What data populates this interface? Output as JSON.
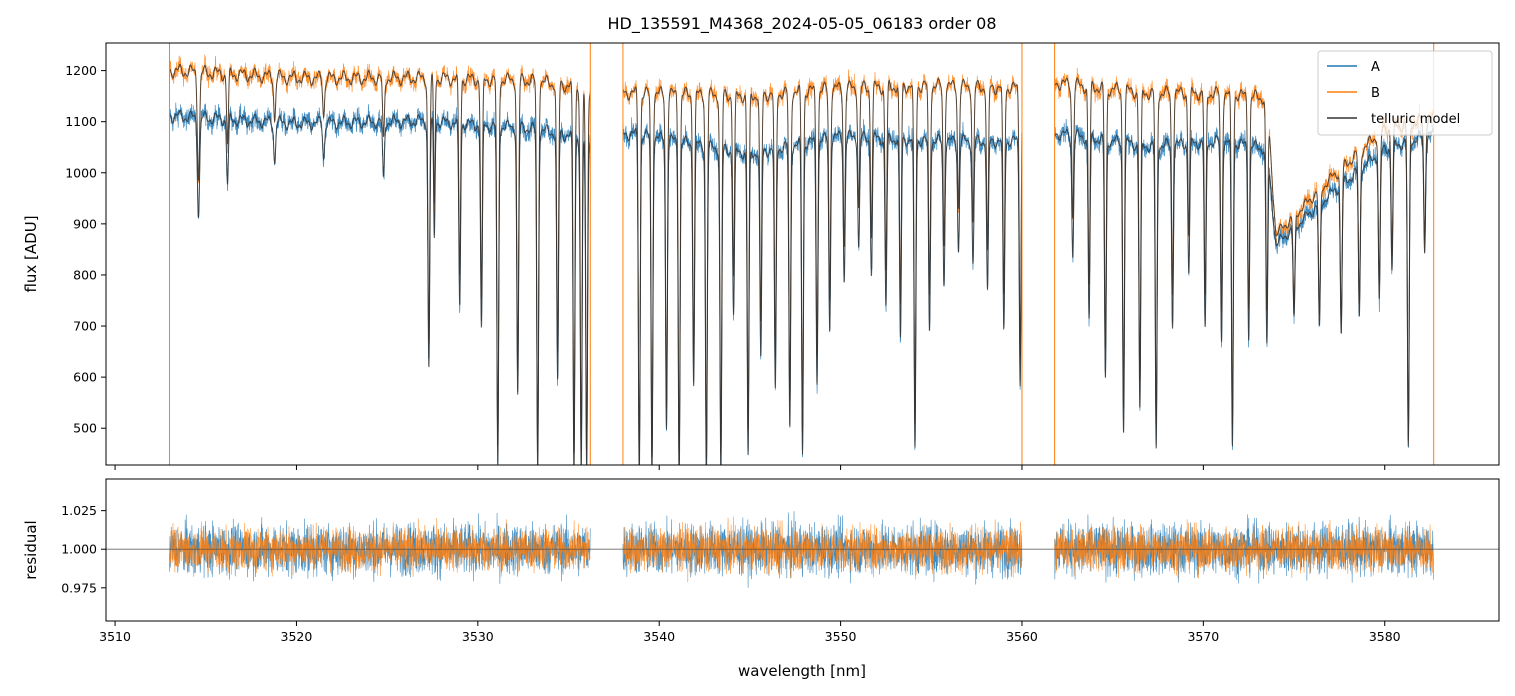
{
  "chart_data": {
    "title": "HD_135591_M4368_2024-05-05_06183  order 08",
    "xlabel": "wavelength [nm]",
    "xlim": [
      3509.5,
      3586.3
    ],
    "x_ticks": [
      3510,
      3520,
      3530,
      3540,
      3550,
      3560,
      3570,
      3580
    ],
    "x_tick_labels": [
      "3510",
      "3520",
      "3530",
      "3540",
      "3550",
      "3560",
      "3570",
      "3580"
    ],
    "x_coverage_segments": [
      [
        3513.0,
        3536.2
      ],
      [
        3538.0,
        3560.0
      ],
      [
        3561.8,
        3582.7
      ]
    ],
    "panels": [
      {
        "type": "line",
        "ylabel": "flux [ADU]",
        "ylim": [
          428,
          1254
        ],
        "y_ticks": [
          500,
          600,
          700,
          800,
          900,
          1000,
          1100,
          1200
        ],
        "y_tick_labels": [
          "500",
          "600",
          "700",
          "800",
          "900",
          "1000",
          "1100",
          "1200"
        ],
        "legend": {
          "position": "top-right",
          "entries": [
            {
              "label": "A",
              "color": "#1f77b4"
            },
            {
              "label": "B",
              "color": "#ff7f0e"
            },
            {
              "label": "telluric model",
              "color": "#333333"
            }
          ]
        },
        "series": [
          {
            "name": "A",
            "color": "#1f77b4",
            "continuum": [
              [
                3513.0,
                1125
              ],
              [
                3520.0,
                1110
              ],
              [
                3527.0,
                1115
              ],
              [
                3533.0,
                1100
              ],
              [
                3536.0,
                1080
              ],
              [
                3538.5,
                1090
              ],
              [
                3545.0,
                1050
              ],
              [
                3550.0,
                1085
              ],
              [
                3555.0,
                1075
              ],
              [
                3560.0,
                1075
              ],
              [
                3562.0,
                1090
              ],
              [
                3567.0,
                1065
              ],
              [
                3571.0,
                1075
              ],
              [
                3573.5,
                1060
              ],
              [
                3574.0,
                870
              ],
              [
                3577.0,
                970
              ],
              [
                3580.0,
                1060
              ],
              [
                3582.7,
                1090
              ]
            ]
          },
          {
            "name": "B",
            "color": "#ff7f0e",
            "continuum": [
              [
                3513.0,
                1215
              ],
              [
                3520.0,
                1200
              ],
              [
                3527.0,
                1200
              ],
              [
                3533.0,
                1195
              ],
              [
                3536.0,
                1180
              ],
              [
                3538.5,
                1170
              ],
              [
                3545.0,
                1165
              ],
              [
                3550.0,
                1180
              ],
              [
                3555.0,
                1185
              ],
              [
                3560.0,
                1180
              ],
              [
                3562.0,
                1190
              ],
              [
                3567.0,
                1170
              ],
              [
                3571.0,
                1170
              ],
              [
                3573.5,
                1160
              ],
              [
                3574.0,
                890
              ],
              [
                3577.0,
                1000
              ],
              [
                3580.0,
                1100
              ],
              [
                3582.7,
                1120
              ]
            ]
          }
        ],
        "telluric_model": {
          "name": "telluric model",
          "color": "#333333",
          "absorption_lines": [
            [
              3514.6,
              190,
              0.06
            ],
            [
              3516.2,
              130,
              0.05
            ],
            [
              3518.8,
              80,
              0.05
            ],
            [
              3521.5,
              70,
              0.05
            ],
            [
              3524.8,
              120,
              0.05
            ],
            [
              3527.3,
              500,
              0.05
            ],
            [
              3527.6,
              240,
              0.04
            ],
            [
              3529.0,
              370,
              0.05
            ],
            [
              3530.2,
              420,
              0.05
            ],
            [
              3531.1,
              700,
              0.05
            ],
            [
              3532.2,
              550,
              0.05
            ],
            [
              3533.3,
              700,
              0.05
            ],
            [
              3534.4,
              520,
              0.05
            ],
            [
              3535.3,
              700,
              0.05
            ],
            [
              3535.7,
              700,
              0.05
            ],
            [
              3536.0,
              700,
              0.05
            ],
            [
              3538.9,
              700,
              0.05
            ],
            [
              3539.6,
              700,
              0.05
            ],
            [
              3540.4,
              600,
              0.05
            ],
            [
              3541.1,
              700,
              0.05
            ],
            [
              3541.9,
              500,
              0.05
            ],
            [
              3542.6,
              700,
              0.05
            ],
            [
              3543.4,
              700,
              0.05
            ],
            [
              3544.1,
              350,
              0.05
            ],
            [
              3544.9,
              650,
              0.05
            ],
            [
              3545.6,
              450,
              0.05
            ],
            [
              3546.4,
              520,
              0.05
            ],
            [
              3547.2,
              600,
              0.05
            ],
            [
              3547.9,
              650,
              0.05
            ],
            [
              3548.7,
              500,
              0.05
            ],
            [
              3549.4,
              400,
              0.05
            ],
            [
              3550.2,
              300,
              0.05
            ],
            [
              3551.0,
              230,
              0.05
            ],
            [
              3551.7,
              280,
              0.05
            ],
            [
              3552.5,
              350,
              0.05
            ],
            [
              3553.3,
              420,
              0.05
            ],
            [
              3554.1,
              650,
              0.05
            ],
            [
              3554.9,
              400,
              0.05
            ],
            [
              3555.7,
              300,
              0.05
            ],
            [
              3556.5,
              230,
              0.05
            ],
            [
              3557.3,
              260,
              0.05
            ],
            [
              3558.1,
              320,
              0.05
            ],
            [
              3559.0,
              400,
              0.05
            ],
            [
              3559.9,
              500,
              0.05
            ],
            [
              3562.8,
              250,
              0.05
            ],
            [
              3563.7,
              380,
              0.05
            ],
            [
              3564.6,
              500,
              0.05
            ],
            [
              3565.6,
              600,
              0.05
            ],
            [
              3566.5,
              560,
              0.05
            ],
            [
              3567.4,
              650,
              0.05
            ],
            [
              3568.3,
              380,
              0.05
            ],
            [
              3569.2,
              270,
              0.05
            ],
            [
              3570.1,
              400,
              0.05
            ],
            [
              3571.0,
              420,
              0.05
            ],
            [
              3571.6,
              640,
              0.05
            ],
            [
              3572.5,
              400,
              0.05
            ],
            [
              3573.5,
              420,
              0.05
            ],
            [
              3575.0,
              230,
              0.05
            ],
            [
              3576.4,
              300,
              0.05
            ],
            [
              3577.6,
              340,
              0.05
            ],
            [
              3578.6,
              330,
              0.05
            ],
            [
              3579.7,
              320,
              0.05
            ],
            [
              3580.4,
              260,
              0.05
            ],
            [
              3581.3,
              650,
              0.05
            ],
            [
              3582.2,
              240,
              0.05
            ]
          ]
        }
      },
      {
        "type": "line",
        "ylabel": "residual",
        "ylim": [
          0.9535,
          1.0455
        ],
        "y_ticks": [
          0.975,
          1.0,
          1.025
        ],
        "y_tick_labels": [
          "0.975",
          "1.000",
          "1.025"
        ],
        "reference_line": 1.0,
        "series": [
          {
            "name": "A",
            "color": "#1f77b4",
            "center": 1.0,
            "noise_std": 0.014
          },
          {
            "name": "B",
            "color": "#ff7f0e",
            "center": 1.0,
            "noise_std": 0.012
          }
        ]
      }
    ]
  }
}
